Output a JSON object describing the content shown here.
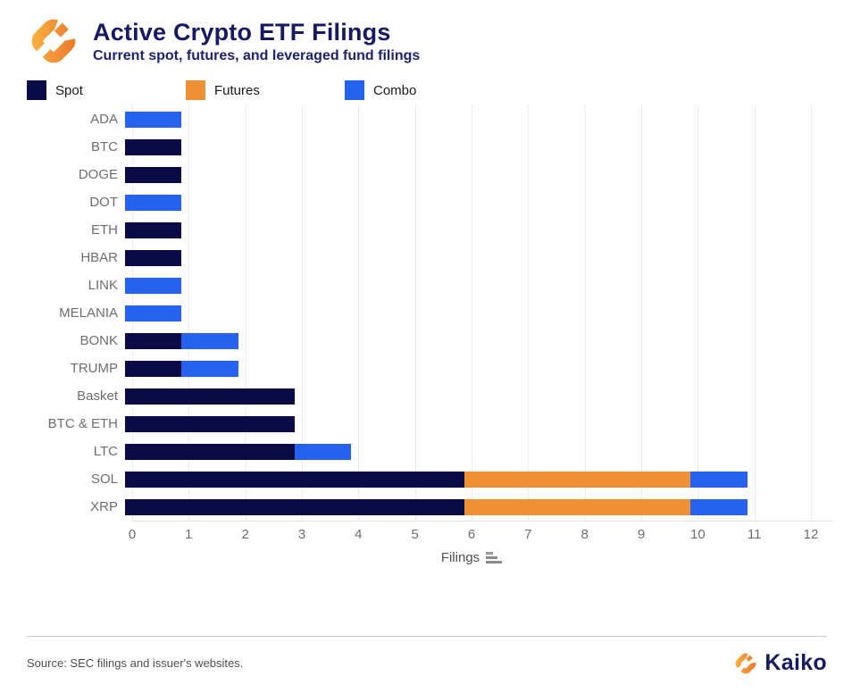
{
  "header": {
    "title": "Active Crypto ETF Filings",
    "subtitle": "Current spot, futures, and leveraged fund filings"
  },
  "legend": {
    "items": [
      {
        "label": "Spot",
        "color": "#0a0a46"
      },
      {
        "label": "Futures",
        "color": "#ee8f35"
      },
      {
        "label": "Combo",
        "color": "#2563ee"
      }
    ]
  },
  "chart_data": {
    "type": "bar",
    "orientation": "horizontal",
    "stacked": true,
    "categories": [
      "ADA",
      "BTC",
      "DOGE",
      "DOT",
      "ETH",
      "HBAR",
      "LINK",
      "MELANIA",
      "BONK",
      "TRUMP",
      "Basket",
      "BTC & ETH",
      "LTC",
      "SOL",
      "XRP"
    ],
    "series": [
      {
        "name": "Spot",
        "color": "#0a0a46",
        "values": [
          0,
          1,
          1,
          0,
          1,
          1,
          0,
          0,
          1,
          1,
          3,
          3,
          3,
          6,
          6
        ]
      },
      {
        "name": "Futures",
        "color": "#ee8f35",
        "values": [
          0,
          0,
          0,
          0,
          0,
          0,
          0,
          0,
          0,
          0,
          0,
          0,
          0,
          4,
          4
        ]
      },
      {
        "name": "Combo",
        "color": "#2563ee",
        "values": [
          1,
          0,
          0,
          1,
          0,
          0,
          1,
          1,
          1,
          1,
          0,
          0,
          1,
          1,
          1
        ]
      }
    ],
    "totals": [
      1,
      1,
      1,
      1,
      1,
      1,
      1,
      1,
      2,
      2,
      3,
      3,
      4,
      11,
      11
    ],
    "xlabel": "Filings",
    "xlim": [
      0,
      12
    ],
    "xticks": [
      0,
      1,
      2,
      3,
      4,
      5,
      6,
      7,
      8,
      9,
      10,
      11,
      12
    ],
    "grid": true,
    "legend_position": "top",
    "sort_icon": "sort-bars-ascending-icon"
  },
  "footer": {
    "source": "Source: SEC filings and issuer's websites.",
    "brand": "Kaiko"
  },
  "colors": {
    "title_navy": "#151a63",
    "axis_text": "#6e6e6e",
    "gridline": "#ececec",
    "logo_orange_dark": "#ed7d2b",
    "logo_orange_light": "#f8b03c"
  }
}
